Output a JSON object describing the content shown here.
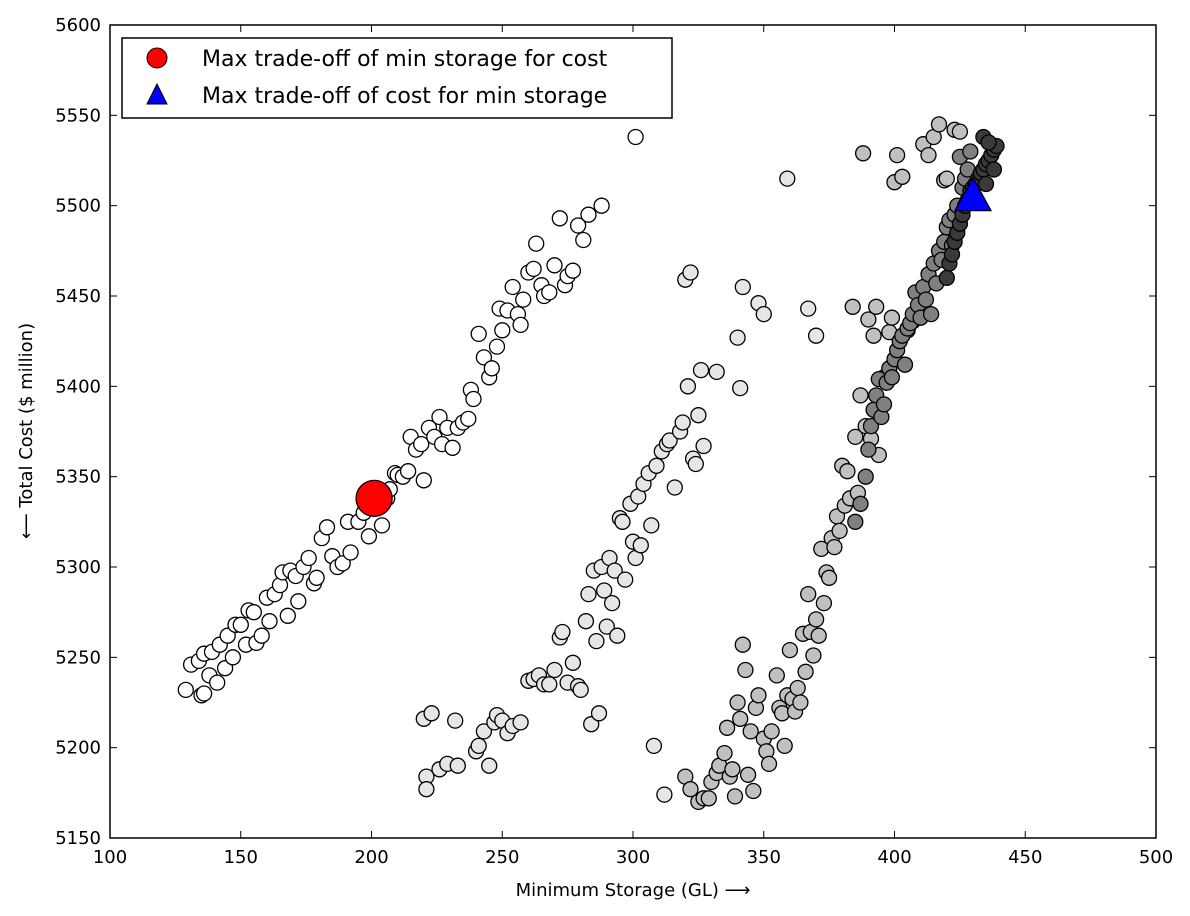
{
  "chart_data": {
    "type": "scatter",
    "xlabel": "Minimum Storage (GL)  ⟶",
    "ylabel": "⟵  Total Cost ($ million)",
    "xlim": [
      100,
      500
    ],
    "ylim": [
      5150,
      5600
    ],
    "xticks": [
      "100",
      "150",
      "200",
      "250",
      "300",
      "350",
      "400",
      "450",
      "500"
    ],
    "yticks": [
      "5150",
      "5200",
      "5250",
      "5300",
      "5350",
      "5400",
      "5450",
      "5500",
      "5550",
      "5600"
    ],
    "grid": false,
    "legend_position": "top-left",
    "legend": [
      {
        "label": "Max trade-off of min storage for cost",
        "marker": "circle",
        "color": "#ff0000"
      },
      {
        "label": "Max trade-off of cost for min storage",
        "marker": "triangle",
        "color": "#0000ff"
      }
    ],
    "highlight_points": [
      {
        "marker": "circle",
        "color": "#ff0000",
        "x": 201,
        "y": 5338
      },
      {
        "marker": "triangle",
        "color": "#0000ff",
        "x": 430,
        "y": 5505
      }
    ],
    "cluster_a": {
      "color": "#ffffff",
      "points": [
        [
          129,
          5232
        ],
        [
          131,
          5246
        ],
        [
          134,
          5248
        ],
        [
          135,
          5229
        ],
        [
          136,
          5252
        ],
        [
          136,
          5230
        ],
        [
          138,
          5240
        ],
        [
          139,
          5253
        ],
        [
          141,
          5236
        ],
        [
          142,
          5257
        ],
        [
          144,
          5244
        ],
        [
          145,
          5262
        ],
        [
          147,
          5250
        ],
        [
          148,
          5268
        ],
        [
          150,
          5268
        ],
        [
          152,
          5257
        ],
        [
          153,
          5276
        ],
        [
          155,
          5275
        ],
        [
          156,
          5258
        ],
        [
          158,
          5262
        ],
        [
          160,
          5283
        ],
        [
          161,
          5270
        ],
        [
          163,
          5285
        ],
        [
          165,
          5290
        ],
        [
          166,
          5297
        ],
        [
          168,
          5273
        ],
        [
          169,
          5298
        ],
        [
          171,
          5295
        ],
        [
          172,
          5281
        ],
        [
          174,
          5300
        ],
        [
          176,
          5305
        ],
        [
          178,
          5291
        ],
        [
          179,
          5294
        ],
        [
          181,
          5316
        ],
        [
          183,
          5322
        ],
        [
          185,
          5306
        ],
        [
          187,
          5300
        ],
        [
          189,
          5302
        ],
        [
          191,
          5325
        ],
        [
          192,
          5308
        ],
        [
          195,
          5325
        ],
        [
          197,
          5330
        ],
        [
          199,
          5317
        ],
        [
          203,
          5335
        ],
        [
          204,
          5323
        ],
        [
          206,
          5338
        ],
        [
          207,
          5343
        ],
        [
          209,
          5352
        ],
        [
          210,
          5351
        ],
        [
          212,
          5350
        ],
        [
          214,
          5353
        ],
        [
          215,
          5372
        ],
        [
          217,
          5365
        ],
        [
          219,
          5368
        ],
        [
          220,
          5348
        ],
        [
          222,
          5377
        ],
        [
          224,
          5372
        ],
        [
          226,
          5383
        ],
        [
          227,
          5368
        ],
        [
          229,
          5377
        ],
        [
          231,
          5366
        ],
        [
          233,
          5377
        ],
        [
          235,
          5380
        ],
        [
          237,
          5382
        ],
        [
          238,
          5398
        ],
        [
          239,
          5393
        ],
        [
          241,
          5429
        ],
        [
          243,
          5416
        ],
        [
          245,
          5405
        ],
        [
          246,
          5410
        ],
        [
          248,
          5422
        ],
        [
          249,
          5443
        ],
        [
          250,
          5431
        ],
        [
          252,
          5442
        ],
        [
          254,
          5455
        ],
        [
          256,
          5440
        ],
        [
          257,
          5434
        ],
        [
          258,
          5448
        ],
        [
          260,
          5463
        ],
        [
          262,
          5465
        ],
        [
          263,
          5479
        ],
        [
          265,
          5456
        ],
        [
          266,
          5450
        ],
        [
          268,
          5452
        ],
        [
          270,
          5467
        ],
        [
          272,
          5493
        ],
        [
          274,
          5456
        ],
        [
          275,
          5461
        ],
        [
          277,
          5464
        ],
        [
          279,
          5489
        ],
        [
          281,
          5481
        ],
        [
          283,
          5495
        ],
        [
          288,
          5500
        ],
        [
          301,
          5538
        ]
      ]
    },
    "cluster_b": {
      "color": "#e6e6e6",
      "points": [
        [
          220,
          5216
        ],
        [
          221,
          5184
        ],
        [
          221,
          5177
        ],
        [
          223,
          5219
        ],
        [
          226,
          5188
        ],
        [
          229,
          5191
        ],
        [
          232,
          5215
        ],
        [
          233,
          5190
        ],
        [
          240,
          5198
        ],
        [
          241,
          5201
        ],
        [
          243,
          5209
        ],
        [
          245,
          5190
        ],
        [
          247,
          5214
        ],
        [
          248,
          5218
        ],
        [
          250,
          5215
        ],
        [
          252,
          5208
        ],
        [
          254,
          5212
        ],
        [
          257,
          5214
        ],
        [
          260,
          5237
        ],
        [
          262,
          5238
        ],
        [
          264,
          5240
        ],
        [
          266,
          5235
        ],
        [
          268,
          5235
        ],
        [
          270,
          5243
        ],
        [
          272,
          5261
        ],
        [
          273,
          5264
        ],
        [
          275,
          5236
        ],
        [
          277,
          5247
        ],
        [
          279,
          5234
        ],
        [
          280,
          5232
        ],
        [
          282,
          5270
        ],
        [
          283,
          5285
        ],
        [
          284,
          5213
        ],
        [
          285,
          5298
        ],
        [
          286,
          5259
        ],
        [
          287,
          5219
        ],
        [
          288,
          5300
        ],
        [
          289,
          5287
        ],
        [
          290,
          5267
        ],
        [
          291,
          5305
        ],
        [
          292,
          5280
        ],
        [
          293,
          5298
        ],
        [
          294,
          5262
        ],
        [
          295,
          5327
        ],
        [
          296,
          5325
        ],
        [
          297,
          5293
        ],
        [
          299,
          5335
        ],
        [
          300,
          5314
        ],
        [
          301,
          5305
        ],
        [
          302,
          5339
        ],
        [
          303,
          5312
        ],
        [
          304,
          5346
        ],
        [
          306,
          5352
        ],
        [
          307,
          5323
        ],
        [
          308,
          5201
        ],
        [
          309,
          5356
        ],
        [
          311,
          5364
        ],
        [
          312,
          5174
        ],
        [
          313,
          5368
        ],
        [
          314,
          5370
        ],
        [
          316,
          5344
        ],
        [
          318,
          5375
        ],
        [
          319,
          5380
        ],
        [
          320,
          5459
        ],
        [
          321,
          5400
        ],
        [
          322,
          5463
        ],
        [
          323,
          5360
        ],
        [
          324,
          5357
        ],
        [
          325,
          5384
        ],
        [
          326,
          5409
        ],
        [
          327,
          5367
        ],
        [
          332,
          5408
        ],
        [
          340,
          5427
        ],
        [
          341,
          5399
        ],
        [
          342,
          5455
        ],
        [
          348,
          5446
        ],
        [
          350,
          5440
        ],
        [
          359,
          5515
        ],
        [
          367,
          5443
        ],
        [
          370,
          5428
        ]
      ]
    },
    "cluster_c": {
      "color": "#c0c0c0",
      "points": [
        [
          320,
          5184
        ],
        [
          322,
          5177
        ],
        [
          325,
          5170
        ],
        [
          327,
          5172
        ],
        [
          329,
          5172
        ],
        [
          330,
          5181
        ],
        [
          332,
          5186
        ],
        [
          333,
          5190
        ],
        [
          335,
          5197
        ],
        [
          336,
          5211
        ],
        [
          337,
          5184
        ],
        [
          338,
          5188
        ],
        [
          339,
          5173
        ],
        [
          340,
          5225
        ],
        [
          341,
          5216
        ],
        [
          342,
          5257
        ],
        [
          343,
          5243
        ],
        [
          344,
          5185
        ],
        [
          345,
          5209
        ],
        [
          346,
          5176
        ],
        [
          347,
          5222
        ],
        [
          348,
          5229
        ],
        [
          350,
          5205
        ],
        [
          351,
          5198
        ],
        [
          352,
          5191
        ],
        [
          353,
          5209
        ],
        [
          355,
          5240
        ],
        [
          356,
          5222
        ],
        [
          357,
          5219
        ],
        [
          358,
          5201
        ],
        [
          359,
          5229
        ],
        [
          360,
          5254
        ],
        [
          361,
          5227
        ],
        [
          362,
          5220
        ],
        [
          363,
          5233
        ],
        [
          364,
          5225
        ],
        [
          365,
          5263
        ],
        [
          366,
          5242
        ],
        [
          367,
          5285
        ],
        [
          368,
          5264
        ],
        [
          369,
          5251
        ],
        [
          370,
          5271
        ],
        [
          371,
          5262
        ],
        [
          372,
          5310
        ],
        [
          373,
          5280
        ],
        [
          374,
          5297
        ],
        [
          375,
          5294
        ],
        [
          376,
          5316
        ],
        [
          377,
          5311
        ],
        [
          378,
          5328
        ],
        [
          379,
          5320
        ],
        [
          380,
          5356
        ],
        [
          381,
          5334
        ],
        [
          382,
          5353
        ],
        [
          383,
          5338
        ],
        [
          384,
          5444
        ],
        [
          385,
          5372
        ],
        [
          386,
          5341
        ],
        [
          387,
          5395
        ],
        [
          388,
          5529
        ],
        [
          389,
          5378
        ],
        [
          390,
          5437
        ],
        [
          391,
          5371
        ],
        [
          392,
          5428
        ],
        [
          393,
          5444
        ],
        [
          394,
          5362
        ],
        [
          396,
          5405
        ],
        [
          398,
          5430
        ],
        [
          399,
          5438
        ],
        [
          400,
          5513
        ],
        [
          401,
          5528
        ],
        [
          403,
          5516
        ],
        [
          405,
          5431
        ],
        [
          407,
          5436
        ],
        [
          409,
          5440
        ],
        [
          411,
          5534
        ],
        [
          413,
          5528
        ],
        [
          415,
          5538
        ],
        [
          417,
          5545
        ],
        [
          419,
          5514
        ],
        [
          420,
          5515
        ],
        [
          423,
          5542
        ],
        [
          425,
          5541
        ]
      ]
    },
    "cluster_d": {
      "color": "#808080",
      "points": [
        [
          385,
          5325
        ],
        [
          387,
          5335
        ],
        [
          389,
          5350
        ],
        [
          390,
          5365
        ],
        [
          391,
          5378
        ],
        [
          392,
          5387
        ],
        [
          393,
          5395
        ],
        [
          394,
          5404
        ],
        [
          395,
          5383
        ],
        [
          396,
          5390
        ],
        [
          397,
          5402
        ],
        [
          398,
          5410
        ],
        [
          399,
          5405
        ],
        [
          400,
          5415
        ],
        [
          401,
          5420
        ],
        [
          402,
          5425
        ],
        [
          403,
          5428
        ],
        [
          404,
          5412
        ],
        [
          405,
          5432
        ],
        [
          406,
          5435
        ],
        [
          407,
          5440
        ],
        [
          408,
          5452
        ],
        [
          409,
          5445
        ],
        [
          410,
          5438
        ],
        [
          411,
          5455
        ],
        [
          412,
          5448
        ],
        [
          413,
          5462
        ],
        [
          414,
          5440
        ],
        [
          415,
          5468
        ],
        [
          416,
          5457
        ],
        [
          417,
          5475
        ],
        [
          418,
          5470
        ],
        [
          419,
          5480
        ],
        [
          420,
          5488
        ],
        [
          421,
          5492
        ],
        [
          422,
          5478
        ],
        [
          423,
          5495
        ],
        [
          424,
          5500
        ],
        [
          425,
          5527
        ],
        [
          426,
          5510
        ],
        [
          427,
          5515
        ],
        [
          428,
          5520
        ],
        [
          429,
          5530
        ]
      ]
    },
    "cluster_e": {
      "color": "#3a3a3a",
      "points": [
        [
          420,
          5460
        ],
        [
          421,
          5468
        ],
        [
          422,
          5473
        ],
        [
          423,
          5480
        ],
        [
          424,
          5485
        ],
        [
          425,
          5490
        ],
        [
          426,
          5495
        ],
        [
          427,
          5500
        ],
        [
          428,
          5503
        ],
        [
          429,
          5508
        ],
        [
          430,
          5510
        ],
        [
          431,
          5512
        ],
        [
          432,
          5515
        ],
        [
          433,
          5518
        ],
        [
          434,
          5520
        ],
        [
          435,
          5523
        ],
        [
          436,
          5525
        ],
        [
          437,
          5528
        ],
        [
          438,
          5531
        ],
        [
          439,
          5533
        ],
        [
          434,
          5538
        ],
        [
          436,
          5535
        ],
        [
          438,
          5520
        ],
        [
          435,
          5512
        ]
      ]
    },
    "legend_labels": [
      "Max trade-off of min storage for cost",
      "Max trade-off of cost for min storage"
    ]
  }
}
